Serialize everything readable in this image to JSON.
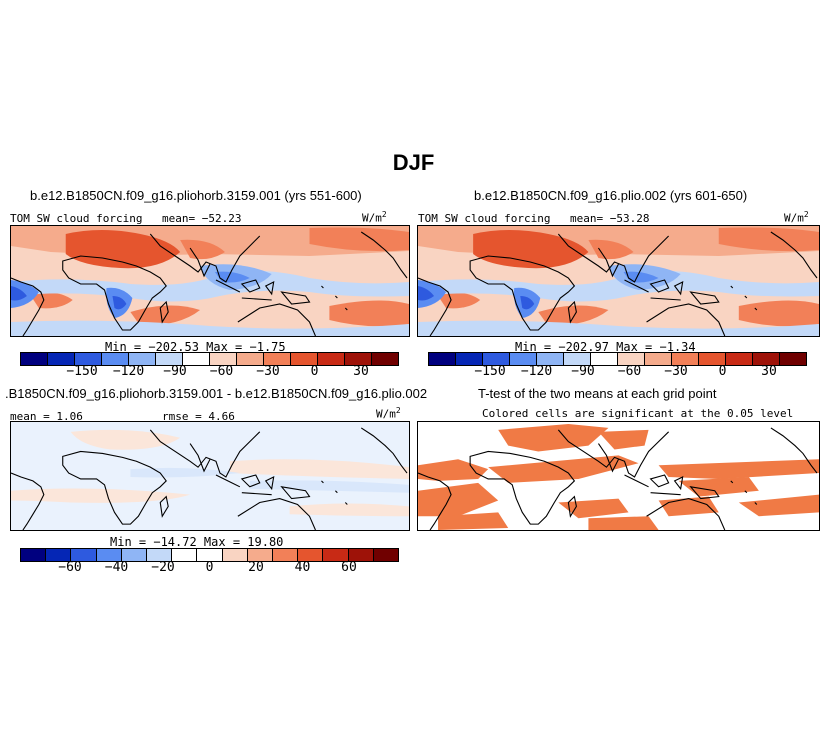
{
  "figure": {
    "title": "DJF"
  },
  "panels": [
    {
      "title": "b.e12.B1850CN.f09_g16.pliohorb.3159.001 (yrs 551-600)",
      "left_label": "TOM SW cloud forcing",
      "center_label": "mean= −52.23",
      "units": "W/m",
      "units_exp": "2",
      "stats": "Min = −202.53 Max = −1.75"
    },
    {
      "title": "b.e12.B1850CN.f09_g16.plio.002 (yrs 601-650)",
      "left_label": "TOM SW cloud forcing",
      "center_label": "mean= −53.28",
      "units": "W/m",
      "units_exp": "2",
      "stats": "Min = −202.97 Max = −1.34"
    },
    {
      "title": ".B1850CN.f09_g16.pliohorb.3159.001 - b.e12.B1850CN.f09_g16.plio.002",
      "left_label": "mean =   1.06",
      "center_label": "rmse =   4.66",
      "units": "W/m",
      "units_exp": "2",
      "stats": "Min = −14.72 Max =  19.80"
    },
    {
      "title": "T-test of the two means at each grid point",
      "subtitle": "Colored cells are significant at the 0.05 level"
    }
  ],
  "colors": {
    "abs_scale": [
      "#00007f",
      "#0526b5",
      "#2e5adf",
      "#5a8cf2",
      "#8fb5f5",
      "#c3d9f8",
      "#ffffff",
      "#f9d4c2",
      "#f5ab8c",
      "#f28058",
      "#e5552e",
      "#c82a15",
      "#9e1208",
      "#700000"
    ],
    "diff_scale": [
      "#00007f",
      "#0526b5",
      "#2e5adf",
      "#5a8cf2",
      "#8fb5f5",
      "#c3d9f8",
      "#ffffff",
      "#ffffff",
      "#f9d4c2",
      "#f5ab8c",
      "#f28058",
      "#e5552e",
      "#c82a15",
      "#9e1208",
      "#700000"
    ],
    "sig": "#f07a45",
    "coast": "#000000"
  },
  "chart_data": [
    {
      "type": "heatmap",
      "title": "b.e12.B1850CN.f09_g16.pliohorb.3159.001 (yrs 551-600)",
      "variable": "TOM SW cloud forcing",
      "units": "W/m2",
      "mean": -52.23,
      "min": -202.53,
      "max": -1.75,
      "colorbar_levels": [
        -180,
        -165,
        -150,
        -135,
        -120,
        -105,
        -90,
        -75,
        -60,
        -45,
        -30,
        -15,
        0,
        15,
        30,
        45
      ],
      "colorbar_tick_labels": [
        "−150",
        "−120",
        "−90",
        "−60",
        "−30",
        "0",
        "30"
      ],
      "colorbar_tick_values": [
        -150,
        -120,
        -90,
        -60,
        -30,
        0,
        30
      ]
    },
    {
      "type": "heatmap",
      "title": "b.e12.B1850CN.f09_g16.plio.002 (yrs 601-650)",
      "variable": "TOM SW cloud forcing",
      "units": "W/m2",
      "mean": -53.28,
      "min": -202.97,
      "max": -1.34,
      "colorbar_tick_labels": [
        "−150",
        "−120",
        "−90",
        "−60",
        "−30",
        "0",
        "30"
      ],
      "colorbar_tick_values": [
        -150,
        -120,
        -90,
        -60,
        -30,
        0,
        30
      ]
    },
    {
      "type": "heatmap",
      "title": ".B1850CN.f09_g16.pliohorb.3159.001 - b.e12.B1850CN.f09_g16.plio.002",
      "units": "W/m2",
      "mean": 1.06,
      "rmse": 4.66,
      "min": -14.72,
      "max": 19.8,
      "colorbar_tick_labels": [
        "−60",
        "−40",
        "−20",
        "0",
        "20",
        "40",
        "60"
      ],
      "colorbar_tick_values": [
        -60,
        -40,
        -20,
        0,
        20,
        40,
        60
      ]
    },
    {
      "type": "heatmap",
      "title": "T-test of the two means at each grid point",
      "note": "Colored cells are significant at the 0.05 level",
      "significance_level": 0.05
    }
  ]
}
